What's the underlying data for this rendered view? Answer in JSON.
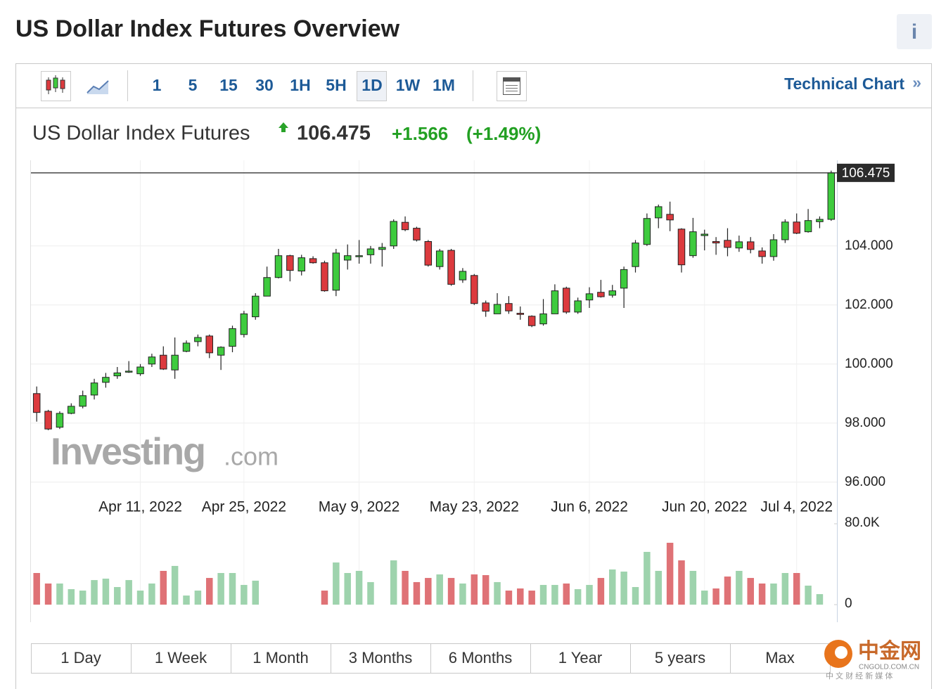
{
  "page_title": "US Dollar Index Futures Overview",
  "info_icon": "i",
  "toolbar": {
    "intervals": [
      "1",
      "5",
      "15",
      "30",
      "1H",
      "5H",
      "1D",
      "1W",
      "1M"
    ],
    "active_interval": "1D",
    "link": "Technical Chart",
    "link_arrow": "»"
  },
  "quote": {
    "name": "US Dollar Index Futures",
    "price": "106.475",
    "change": "+1.566",
    "change_pct": "(+1.49%)"
  },
  "watermark": {
    "brand": "Investing",
    "suffix": ".com"
  },
  "ranges": [
    "1 Day",
    "1 Week",
    "1 Month",
    "3 Months",
    "6 Months",
    "1 Year",
    "5 years",
    "Max"
  ],
  "logo": {
    "name": "中金网",
    "domain": "CNGOLD.COM.CN",
    "slogan": "中 文 财 经 新 媒 体"
  },
  "chart_data": {
    "type": "candlestick",
    "categories": [
      null,
      null,
      null,
      null,
      null,
      null,
      null,
      null,
      null,
      "Apr 11, 2022",
      null,
      null,
      null,
      null,
      null,
      null,
      null,
      null,
      "Apr 25, 2022",
      null,
      null,
      null,
      null,
      null,
      null,
      null,
      null,
      null,
      "May 9, 2022",
      null,
      null,
      null,
      null,
      null,
      null,
      null,
      null,
      null,
      "May 23, 2022",
      null,
      null,
      null,
      null,
      null,
      null,
      null,
      null,
      null,
      "Jun 6, 2022",
      null,
      null,
      null,
      null,
      null,
      null,
      null,
      null,
      null,
      "Jun 20, 2022",
      null,
      null,
      null,
      null,
      null,
      null,
      null,
      "Jul 4, 2022",
      null,
      null,
      null
    ],
    "open": [
      99.0,
      98.4,
      97.86,
      98.33,
      98.57,
      98.95,
      99.38,
      99.6,
      99.73,
      99.67,
      100.0,
      100.3,
      99.8,
      100.43,
      100.76,
      100.95,
      100.3,
      100.6,
      101.0,
      101.6,
      102.3,
      102.93,
      103.67,
      103.15,
      103.57,
      103.43,
      102.5,
      103.52,
      103.64,
      103.7,
      103.88,
      104.0,
      104.8,
      104.6,
      104.15,
      103.3,
      103.85,
      102.85,
      103.0,
      102.07,
      101.7,
      102.05,
      101.72,
      101.62,
      101.36,
      101.7,
      102.57,
      101.76,
      102.17,
      102.43,
      102.33,
      102.57,
      103.3,
      104.05,
      104.95,
      105.07,
      104.57,
      103.67,
      104.35,
      104.15,
      104.19,
      103.93,
      104.14,
      103.83,
      103.64,
      104.21,
      104.81,
      104.48,
      104.82,
      104.9
    ],
    "high": [
      99.24,
      98.45,
      98.4,
      98.67,
      99.1,
      99.5,
      99.7,
      99.9,
      100.1,
      100.0,
      100.35,
      100.6,
      100.9,
      100.8,
      101.0,
      101.0,
      100.6,
      101.3,
      101.8,
      102.4,
      103.3,
      103.9,
      103.7,
      103.7,
      103.65,
      103.5,
      103.9,
      104.05,
      104.2,
      104.0,
      104.1,
      104.9,
      105.0,
      104.65,
      104.2,
      103.9,
      103.9,
      103.25,
      103.05,
      102.15,
      102.4,
      102.3,
      101.95,
      101.65,
      102.2,
      102.7,
      102.62,
      102.25,
      102.6,
      102.85,
      102.68,
      103.3,
      104.2,
      105.1,
      105.4,
      105.5,
      104.6,
      104.95,
      104.55,
      104.3,
      104.6,
      104.35,
      104.3,
      103.95,
      104.4,
      104.9,
      105.1,
      105.25,
      105.0,
      106.55
    ],
    "low": [
      98.05,
      97.76,
      97.8,
      98.3,
      98.5,
      98.8,
      99.2,
      99.5,
      99.7,
      99.6,
      99.9,
      99.8,
      99.5,
      100.4,
      100.6,
      100.2,
      99.8,
      100.4,
      100.9,
      101.5,
      102.3,
      102.9,
      102.8,
      103.0,
      103.4,
      102.45,
      102.3,
      103.2,
      103.4,
      103.4,
      103.3,
      103.9,
      104.5,
      104.15,
      103.3,
      103.2,
      102.65,
      102.75,
      102.0,
      101.6,
      101.7,
      101.7,
      101.5,
      101.25,
      101.3,
      101.7,
      101.7,
      101.7,
      101.9,
      102.25,
      102.25,
      101.9,
      103.1,
      104.0,
      104.6,
      104.5,
      103.1,
      103.6,
      103.85,
      103.7,
      103.65,
      103.8,
      103.75,
      103.4,
      103.5,
      104.1,
      104.4,
      104.45,
      104.6,
      104.85
    ],
    "close": [
      98.36,
      97.8,
      98.33,
      98.57,
      98.93,
      99.36,
      99.55,
      99.7,
      99.76,
      99.9,
      100.24,
      99.83,
      100.3,
      100.71,
      100.9,
      100.38,
      100.57,
      101.2,
      101.7,
      102.3,
      102.93,
      103.67,
      103.17,
      103.6,
      103.43,
      102.48,
      103.76,
      103.67,
      103.67,
      103.9,
      103.95,
      104.83,
      104.55,
      104.2,
      103.35,
      103.83,
      102.7,
      103.14,
      102.05,
      101.79,
      102.02,
      101.8,
      101.68,
      101.3,
      101.7,
      102.48,
      101.76,
      102.14,
      102.38,
      102.28,
      102.48,
      103.2,
      104.1,
      104.93,
      105.33,
      104.88,
      103.36,
      104.48,
      104.4,
      104.1,
      103.95,
      104.14,
      103.88,
      103.64,
      104.21,
      104.81,
      104.43,
      104.86,
      104.9,
      106.475
    ],
    "volume": [
      31300,
      20900,
      20900,
      15300,
      13900,
      24300,
      25700,
      17400,
      24300,
      13900,
      20900,
      33400,
      38300,
      9000,
      13900,
      26400,
      31300,
      31300,
      19500,
      23700,
      null,
      null,
      null,
      null,
      null,
      13900,
      41700,
      31300,
      33400,
      22300,
      null,
      43800,
      33400,
      22300,
      26400,
      29900,
      26400,
      20900,
      29900,
      29200,
      22300,
      13900,
      16000,
      13900,
      19500,
      19500,
      20900,
      15300,
      19500,
      26400,
      34800,
      32700,
      17400,
      52200,
      33400,
      61200,
      43800,
      33400,
      13900,
      16000,
      27800,
      33400,
      26400,
      20900,
      20900,
      31300,
      31300,
      18800,
      10400,
      null
    ],
    "ylim": [
      95.9,
      106.9
    ],
    "yticks": [
      {
        "value": 96,
        "label": "96.000"
      },
      {
        "value": 98,
        "label": "98.000"
      },
      {
        "value": 100,
        "label": "100.000"
      },
      {
        "value": 102,
        "label": "102.000"
      },
      {
        "value": 104,
        "label": "104.000"
      }
    ],
    "volume_lim": [
      0,
      80000
    ],
    "volume_ticks": [
      0,
      {
        "value": 80000,
        "label": "80.0K"
      }
    ],
    "last_price": {
      "value": 106.475,
      "label": "106.475"
    },
    "up_color": "#3ecb3e",
    "down_color": "#dc3a3e",
    "volume_up_color": "#9ed3ad",
    "volume_down_color": "#df7276",
    "grid": true
  }
}
